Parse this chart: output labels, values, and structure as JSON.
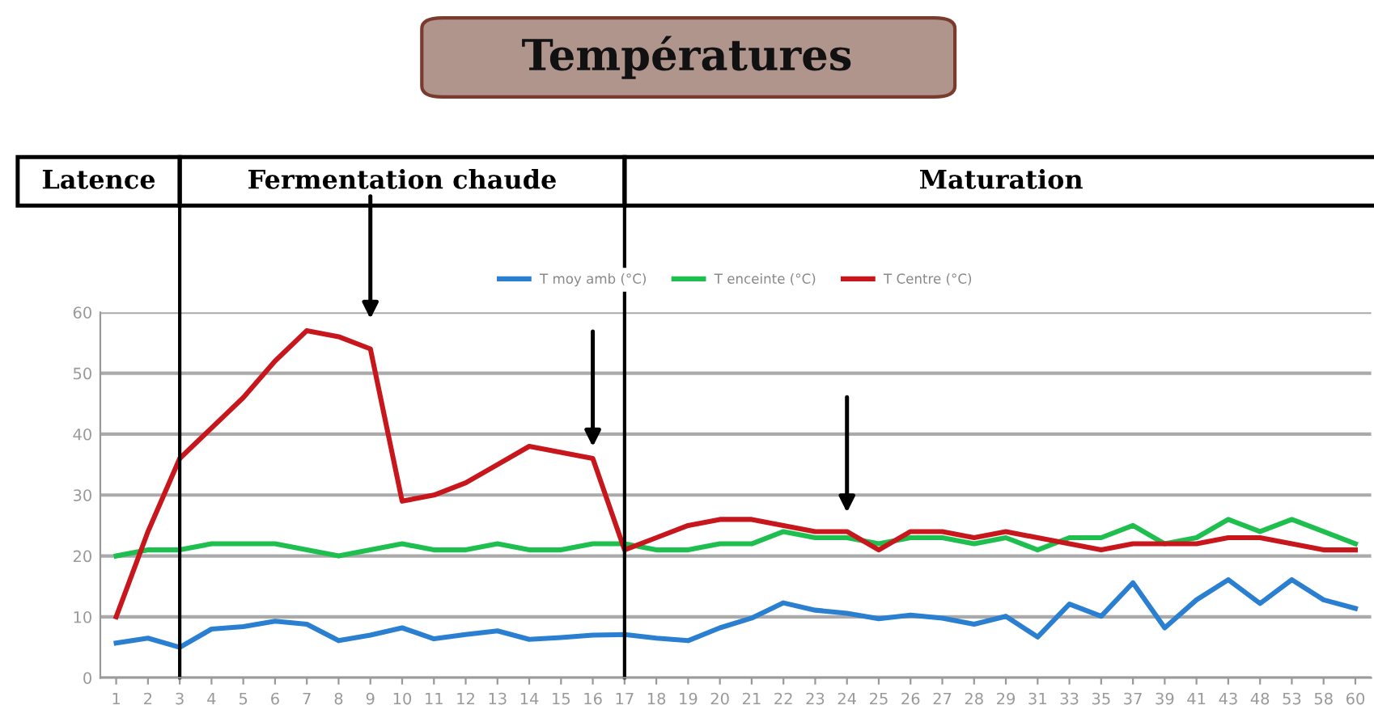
{
  "chart_data": {
    "type": "line",
    "title": "Températures",
    "categories": [
      "1",
      "2",
      "3",
      "4",
      "5",
      "6",
      "7",
      "8",
      "9",
      "10",
      "11",
      "12",
      "13",
      "14",
      "15",
      "16",
      "17",
      "18",
      "19",
      "20",
      "21",
      "22",
      "23",
      "24",
      "25",
      "26",
      "27",
      "28",
      "29",
      "31",
      "33",
      "35",
      "37",
      "39",
      "41",
      "43",
      "48",
      "53",
      "58",
      "60"
    ],
    "series": [
      {
        "name": "T moy amb (°C)",
        "color": "#2a7fd0",
        "values": [
          5.7,
          6.5,
          5,
          8,
          8.4,
          9.3,
          8.8,
          6.1,
          7,
          8.2,
          6.4,
          7.1,
          7.7,
          6.3,
          6.6,
          7,
          7.1,
          6.5,
          6.1,
          8.2,
          9.8,
          12.3,
          11.1,
          10.6,
          9.7,
          10.3,
          9.8,
          8.8,
          10.1,
          6.7,
          12.1,
          10.1,
          15.6,
          8.2,
          12.8,
          16.1,
          12.2,
          16.1,
          12.8,
          11.4
        ]
      },
      {
        "name": "T enceinte (°C)",
        "color": "#1fbf4f",
        "values": [
          20,
          21,
          21,
          22,
          22,
          22,
          21,
          20,
          21,
          22,
          21,
          21,
          22,
          21,
          21,
          22,
          22,
          21,
          21,
          22,
          22,
          24,
          23,
          23,
          22,
          23,
          23,
          22,
          23,
          21,
          23,
          23,
          25,
          22,
          23,
          26,
          24,
          26,
          24,
          22
        ]
      },
      {
        "name": "T Centre (°C)",
        "color": "#c8161d",
        "values": [
          10,
          24,
          36,
          41,
          46,
          52,
          57,
          56,
          54,
          29,
          30,
          32,
          35,
          38,
          37,
          36,
          21,
          23,
          25,
          26,
          26,
          25,
          24,
          24,
          21,
          24,
          24,
          23,
          24,
          23,
          22,
          21,
          22,
          22,
          22,
          23,
          23,
          22,
          21,
          21
        ]
      }
    ],
    "ylim": [
      0,
      60
    ],
    "yticks": [
      0,
      10,
      20,
      30,
      40,
      50,
      60
    ],
    "grid": "y",
    "legend": "top",
    "ref_lines": [
      {
        "axis": "x",
        "value": "3"
      },
      {
        "axis": "x",
        "value": "17"
      }
    ],
    "annotations": [
      "Latence",
      "Fermentation chaude",
      "Maturation"
    ]
  }
}
